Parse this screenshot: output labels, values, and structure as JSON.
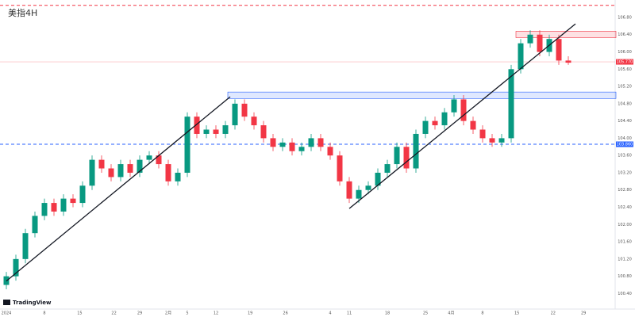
{
  "chart_data": {
    "type": "candlestick",
    "title": "美指4H",
    "brand": "TradingView",
    "open": [
      100.6,
      100.8,
      101.2,
      101.8,
      102.2,
      102.5,
      102.3,
      102.6,
      102.5,
      102.9,
      103.5,
      103.3,
      103.1,
      103.4,
      103.2,
      103.5,
      103.6,
      103.4,
      103.0,
      103.2,
      104.5,
      104.1,
      104.2,
      104.1,
      104.3,
      104.8,
      104.5,
      104.3,
      104.0,
      103.8,
      103.9,
      103.7,
      103.8,
      104.0,
      103.8,
      103.6,
      103.0,
      102.6,
      102.8,
      102.9,
      103.2,
      103.4,
      103.8,
      103.3,
      104.1,
      104.4,
      104.3,
      104.6,
      104.9,
      104.4,
      104.2,
      104.0,
      103.9,
      104.0,
      105.6,
      106.2,
      106.4,
      106.0,
      106.3,
      105.8
    ],
    "high": [
      100.9,
      101.3,
      101.9,
      102.3,
      102.6,
      102.6,
      102.7,
      102.7,
      103.0,
      103.6,
      103.6,
      103.4,
      103.5,
      103.5,
      103.6,
      103.7,
      103.7,
      103.5,
      103.3,
      104.6,
      104.6,
      104.3,
      104.3,
      104.4,
      104.9,
      104.9,
      104.6,
      104.4,
      104.1,
      104.0,
      104.0,
      103.9,
      104.1,
      104.1,
      103.9,
      103.7,
      103.1,
      102.9,
      103.0,
      103.3,
      103.5,
      103.9,
      103.9,
      104.2,
      104.5,
      104.5,
      104.7,
      105.0,
      105.0,
      104.5,
      104.3,
      104.1,
      104.1,
      105.7,
      106.3,
      106.5,
      106.5,
      106.4,
      106.4,
      105.9
    ],
    "low": [
      100.5,
      100.7,
      101.1,
      101.7,
      102.1,
      102.2,
      102.2,
      102.4,
      102.4,
      102.8,
      103.2,
      103.0,
      103.0,
      103.1,
      103.1,
      103.4,
      103.3,
      102.9,
      102.9,
      103.1,
      104.0,
      104.0,
      104.0,
      104.0,
      104.2,
      104.4,
      104.2,
      103.9,
      103.7,
      103.7,
      103.6,
      103.6,
      103.7,
      103.7,
      103.5,
      102.9,
      102.5,
      102.5,
      102.7,
      102.8,
      103.1,
      103.3,
      103.2,
      103.2,
      104.0,
      104.2,
      104.2,
      104.5,
      104.3,
      104.1,
      103.9,
      103.8,
      103.8,
      103.9,
      105.5,
      106.1,
      105.9,
      105.9,
      105.7,
      105.7
    ],
    "close": [
      100.8,
      101.2,
      101.8,
      102.2,
      102.5,
      102.3,
      102.6,
      102.5,
      102.9,
      103.5,
      103.3,
      103.1,
      103.4,
      103.2,
      103.5,
      103.6,
      103.4,
      103.0,
      103.2,
      104.5,
      104.1,
      104.2,
      104.1,
      104.3,
      104.8,
      104.5,
      104.3,
      104.0,
      103.8,
      103.9,
      103.7,
      103.8,
      104.0,
      103.8,
      103.6,
      103.0,
      102.6,
      102.8,
      102.9,
      103.2,
      103.4,
      103.8,
      103.3,
      104.1,
      104.4,
      104.3,
      104.6,
      104.9,
      104.4,
      104.2,
      104.0,
      103.9,
      104.0,
      105.6,
      106.2,
      106.4,
      106.0,
      106.3,
      105.8,
      105.75
    ],
    "up_color": "#089981",
    "down_color": "#f23645",
    "ylim": [
      100.04,
      107.13
    ],
    "yticks": [
      {
        "value": 100.4,
        "label": "100.40"
      },
      {
        "value": 100.8,
        "label": "100.80"
      },
      {
        "value": 101.2,
        "label": "101.20"
      },
      {
        "value": 101.6,
        "label": "101.60"
      },
      {
        "value": 102.0,
        "label": "102.00"
      },
      {
        "value": 102.4,
        "label": "102.40"
      },
      {
        "value": 102.8,
        "label": "102.80"
      },
      {
        "value": 103.2,
        "label": "103.20"
      },
      {
        "value": 103.6,
        "label": "103.60"
      },
      {
        "value": 104.0,
        "label": "104.00"
      },
      {
        "value": 104.4,
        "label": "104.40"
      },
      {
        "value": 104.8,
        "label": "104.80"
      },
      {
        "value": 105.2,
        "label": "105.20"
      },
      {
        "value": 105.6,
        "label": "105.60"
      },
      {
        "value": 106.0,
        "label": "106.00"
      },
      {
        "value": 106.4,
        "label": "106.40"
      },
      {
        "value": 106.8,
        "label": "106.80"
      }
    ],
    "xticks": [
      {
        "value": 0,
        "label": "2024"
      },
      {
        "value": 4,
        "label": "8"
      },
      {
        "value": 7.7,
        "label": "15"
      },
      {
        "value": 11.3,
        "label": "22"
      },
      {
        "value": 14,
        "label": "29"
      },
      {
        "value": 17,
        "label": "2月"
      },
      {
        "value": 19,
        "label": "5"
      },
      {
        "value": 22,
        "label": "12"
      },
      {
        "value": 25.6,
        "label": "19"
      },
      {
        "value": 29.3,
        "label": "26"
      },
      {
        "value": 34,
        "label": "4"
      },
      {
        "value": 36,
        "label": "11"
      },
      {
        "value": 40,
        "label": "18"
      },
      {
        "value": 44,
        "label": "25"
      },
      {
        "value": 46.7,
        "label": "4月"
      },
      {
        "value": 50,
        "label": "8"
      },
      {
        "value": 53.6,
        "label": "15"
      },
      {
        "value": 57.4,
        "label": "22"
      },
      {
        "value": 60.6,
        "label": "29"
      }
    ],
    "levels": [
      {
        "value": 107.08,
        "color": "#f23645",
        "style": "dashed"
      },
      {
        "value": 103.86,
        "label": "103.860",
        "color": "#2962ff",
        "style": "dashed"
      },
      {
        "value": 105.77,
        "label": "105.770",
        "color": "#f23645",
        "style": "solid"
      }
    ],
    "zones": [
      {
        "x": [
          23.25,
          64
        ],
        "y": [
          104.92,
          105.07
        ],
        "color": "#2962ff"
      },
      {
        "x": [
          53.5,
          64
        ],
        "y": [
          106.33,
          106.48
        ],
        "color": "#f23645"
      }
    ],
    "trendlines": [
      {
        "x": [
          0,
          23.5
        ],
        "y": [
          100.69,
          104.96
        ]
      },
      {
        "x": [
          36,
          59.75
        ],
        "y": [
          102.37,
          106.65
        ]
      }
    ]
  }
}
